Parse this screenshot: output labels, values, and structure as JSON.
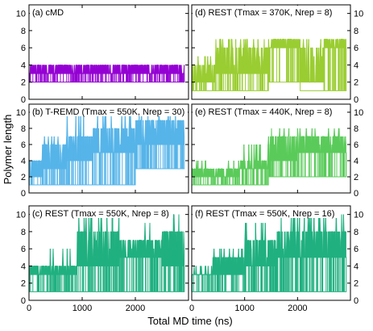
{
  "figure": {
    "ylabel": "Polymer length",
    "xlabel": "Total MD time (ns)"
  },
  "chart_data": [
    {
      "type": "line",
      "title": "(a) cMD",
      "color": "#9400d3",
      "xlim": [
        0,
        3000
      ],
      "ylim": [
        0,
        11
      ],
      "x_ticks": [
        0,
        1000,
        2000
      ],
      "y_ticks": [
        0,
        2,
        4,
        6,
        8,
        10
      ],
      "x_tick_labels_shown": false,
      "y_axis_side": "left",
      "x_extent": [
        0,
        2920
      ],
      "description_levels": {
        "low": 2,
        "base": 3,
        "high": 4
      },
      "segments": [
        [
          0,
          3,
          2,
          4
        ],
        [
          2920,
          3,
          2,
          4
        ]
      ],
      "pattern": {
        "lo": 2,
        "mid": 3,
        "hi": 4,
        "max": 4
      }
    },
    {
      "type": "line",
      "title": "(d) REST (Tmax = 370K, Nrep = 8)",
      "color": "#9acd32",
      "xlim": [
        0,
        3000
      ],
      "ylim": [
        0,
        11
      ],
      "x_ticks": [
        0,
        1000,
        2000
      ],
      "y_ticks": [
        0,
        2,
        4,
        6,
        8,
        10
      ],
      "x_tick_labels_shown": false,
      "y_axis_side": "right",
      "x_extent": [
        0,
        2920
      ],
      "phases": [
        {
          "from": 0,
          "to": 450,
          "lo": 1,
          "base": 2,
          "hi": 4,
          "max": 5
        },
        {
          "from": 450,
          "to": 1450,
          "lo": 1,
          "base": 3,
          "hi": 6,
          "max": 7
        },
        {
          "from": 1450,
          "to": 2050,
          "lo": 2,
          "base": 6,
          "hi": 7,
          "max": 7
        },
        {
          "from": 2050,
          "to": 2500,
          "lo": 2,
          "base": 2,
          "hi": 6,
          "max": 7
        },
        {
          "from": 2500,
          "to": 2920,
          "lo": 1,
          "base": 6,
          "hi": 7,
          "max": 7
        }
      ]
    },
    {
      "type": "line",
      "title": "(b) T-REMD (Tmax = 550K, Nrep = 30)",
      "color": "#56b4e9",
      "xlim": [
        0,
        3000
      ],
      "ylim": [
        0,
        11
      ],
      "x_ticks": [
        0,
        1000,
        2000
      ],
      "y_ticks": [
        0,
        2,
        4,
        6,
        8,
        10
      ],
      "x_tick_labels_shown": false,
      "y_axis_side": "left",
      "x_extent": [
        0,
        2920
      ],
      "phases": [
        {
          "from": 0,
          "to": 250,
          "lo": 1,
          "base": 2,
          "hi": 4,
          "max": 4
        },
        {
          "from": 250,
          "to": 700,
          "lo": 1,
          "base": 3,
          "hi": 6,
          "max": 7
        },
        {
          "from": 700,
          "to": 1200,
          "lo": 1,
          "base": 4,
          "hi": 7,
          "max": 10
        },
        {
          "from": 1200,
          "to": 2000,
          "lo": 1,
          "base": 5,
          "hi": 8,
          "max": 10
        },
        {
          "from": 2000,
          "to": 2920,
          "lo": 3,
          "base": 6,
          "hi": 9,
          "max": 10
        }
      ]
    },
    {
      "type": "line",
      "title": "(e) REST (Tmax = 440K, Nrep = 8)",
      "color": "#5acb5a",
      "xlim": [
        0,
        3000
      ],
      "ylim": [
        0,
        11
      ],
      "x_ticks": [
        0,
        1000,
        2000
      ],
      "y_ticks": [
        0,
        2,
        4,
        6,
        8,
        10
      ],
      "x_tick_labels_shown": false,
      "y_axis_side": "right",
      "x_extent": [
        0,
        2920
      ],
      "phases": [
        {
          "from": 0,
          "to": 900,
          "lo": 1,
          "base": 2,
          "hi": 3,
          "max": 4
        },
        {
          "from": 900,
          "to": 1450,
          "lo": 1,
          "base": 3,
          "hi": 4,
          "max": 6
        },
        {
          "from": 1450,
          "to": 2000,
          "lo": 2,
          "base": 4,
          "hi": 7,
          "max": 8
        },
        {
          "from": 2000,
          "to": 2920,
          "lo": 2,
          "base": 5,
          "hi": 7,
          "max": 8
        }
      ]
    },
    {
      "type": "line",
      "title": "(c) REST (Tmax = 550K, Nrep = 8)",
      "color": "#20b080",
      "xlim": [
        0,
        3000
      ],
      "ylim": [
        0,
        11
      ],
      "x_ticks": [
        0,
        1000,
        2000
      ],
      "y_ticks": [
        0,
        2,
        4,
        6,
        8,
        10
      ],
      "x_tick_labels": [
        "0",
        "1000",
        "2000"
      ],
      "x_tick_labels_shown": true,
      "y_axis_side": "left",
      "x_extent": [
        0,
        2920
      ],
      "phases": [
        {
          "from": 0,
          "to": 400,
          "lo": 1,
          "base": 3,
          "hi": 4,
          "max": 4
        },
        {
          "from": 400,
          "to": 900,
          "lo": 1,
          "base": 3,
          "hi": 4,
          "max": 6
        },
        {
          "from": 900,
          "to": 1700,
          "lo": 1,
          "base": 4,
          "hi": 8,
          "max": 10
        },
        {
          "from": 1700,
          "to": 2500,
          "lo": 1,
          "base": 5,
          "hi": 7,
          "max": 9
        },
        {
          "from": 2500,
          "to": 2920,
          "lo": 1,
          "base": 4,
          "hi": 8,
          "max": 10
        }
      ]
    },
    {
      "type": "line",
      "title": "(f) REST (Tmax = 550K, Nrep = 16)",
      "color": "#20b080",
      "xlim": [
        0,
        3000
      ],
      "ylim": [
        0,
        11
      ],
      "x_ticks": [
        0,
        1000,
        2000
      ],
      "y_ticks": [
        0,
        2,
        4,
        6,
        8,
        10
      ],
      "x_tick_labels": [
        "0",
        "1000",
        "2000"
      ],
      "x_tick_labels_shown": true,
      "y_axis_side": "right",
      "x_extent": [
        0,
        2920
      ],
      "phases": [
        {
          "from": 0,
          "to": 400,
          "lo": 1,
          "base": 3,
          "hi": 3,
          "max": 4
        },
        {
          "from": 400,
          "to": 1000,
          "lo": 1,
          "base": 3,
          "hi": 5,
          "max": 6
        },
        {
          "from": 1000,
          "to": 1600,
          "lo": 1,
          "base": 4,
          "hi": 7,
          "max": 9
        },
        {
          "from": 1600,
          "to": 2920,
          "lo": 1,
          "base": 5,
          "hi": 8,
          "max": 10
        }
      ]
    }
  ]
}
